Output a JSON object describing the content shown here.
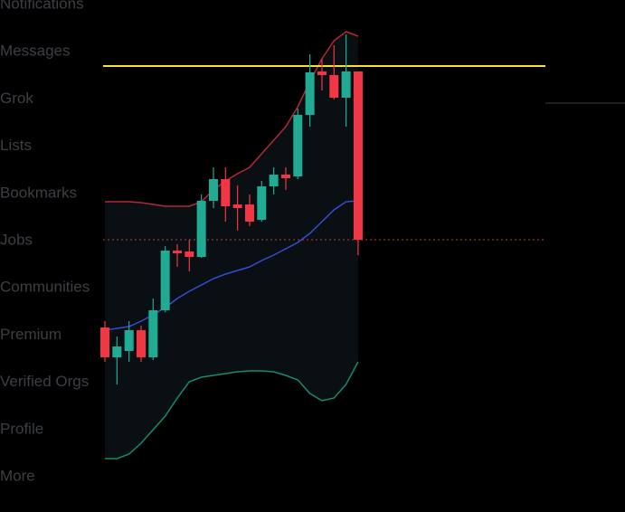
{
  "sidebar": {
    "items": [
      "Notifications",
      "Messages",
      "Grok",
      "Lists",
      "Bookmarks",
      "Jobs",
      "Communities",
      "Premium",
      "Verified Orgs",
      "Profile",
      "More"
    ]
  },
  "chart_data": {
    "type": "candlestick",
    "ylim": [
      0,
      528
    ],
    "up_color": "#22ab94",
    "down_color": "#f23645",
    "open": [
      166,
      133,
      140,
      163,
      133,
      185,
      251,
      250,
      244,
      306,
      330,
      302,
      302,
      285,
      322,
      335,
      333,
      401,
      449,
      445,
      420,
      449
    ],
    "high": [
      173,
      156,
      173,
      168,
      198,
      256,
      258,
      263,
      313,
      343,
      343,
      323,
      313,
      328,
      343,
      343,
      408,
      468,
      463,
      478,
      490,
      449
    ],
    "low": [
      128,
      103,
      128,
      128,
      130,
      183,
      233,
      228,
      243,
      298,
      283,
      273,
      278,
      283,
      313,
      318,
      330,
      388,
      428,
      418,
      388,
      246
    ],
    "close": [
      133,
      145,
      163,
      133,
      185,
      251,
      248,
      244,
      306,
      330,
      300,
      298,
      283,
      322,
      335,
      331,
      401,
      448,
      445,
      420,
      449,
      263
    ],
    "bands": {
      "upper": {
        "color": "#b22833",
        "values": [
          305,
          305,
          305,
          304,
          302,
          300,
          300,
          300,
          305,
          318,
          328,
          336,
          343,
          358,
          373,
          388,
          410,
          438,
          463,
          483,
          493,
          488
        ]
      },
      "middle": {
        "color": "#2f4fd6",
        "values": [
          163,
          165,
          167,
          173,
          180,
          188,
          198,
          206,
          213,
          220,
          225,
          229,
          233,
          240,
          246,
          253,
          260,
          270,
          283,
          296,
          305,
          306
        ]
      },
      "lower": {
        "color": "#168a6a",
        "values": [
          21,
          21,
          26,
          38,
          53,
          68,
          88,
          106,
          111,
          113,
          115,
          117,
          118,
          118,
          117,
          113,
          108,
          93,
          85,
          88,
          103,
          128
        ]
      }
    },
    "levels": [
      {
        "value": 455,
        "color": "#f7e03c",
        "style": "solid"
      },
      {
        "value": 263,
        "color": "#c0392b",
        "style": "dotted"
      }
    ]
  }
}
